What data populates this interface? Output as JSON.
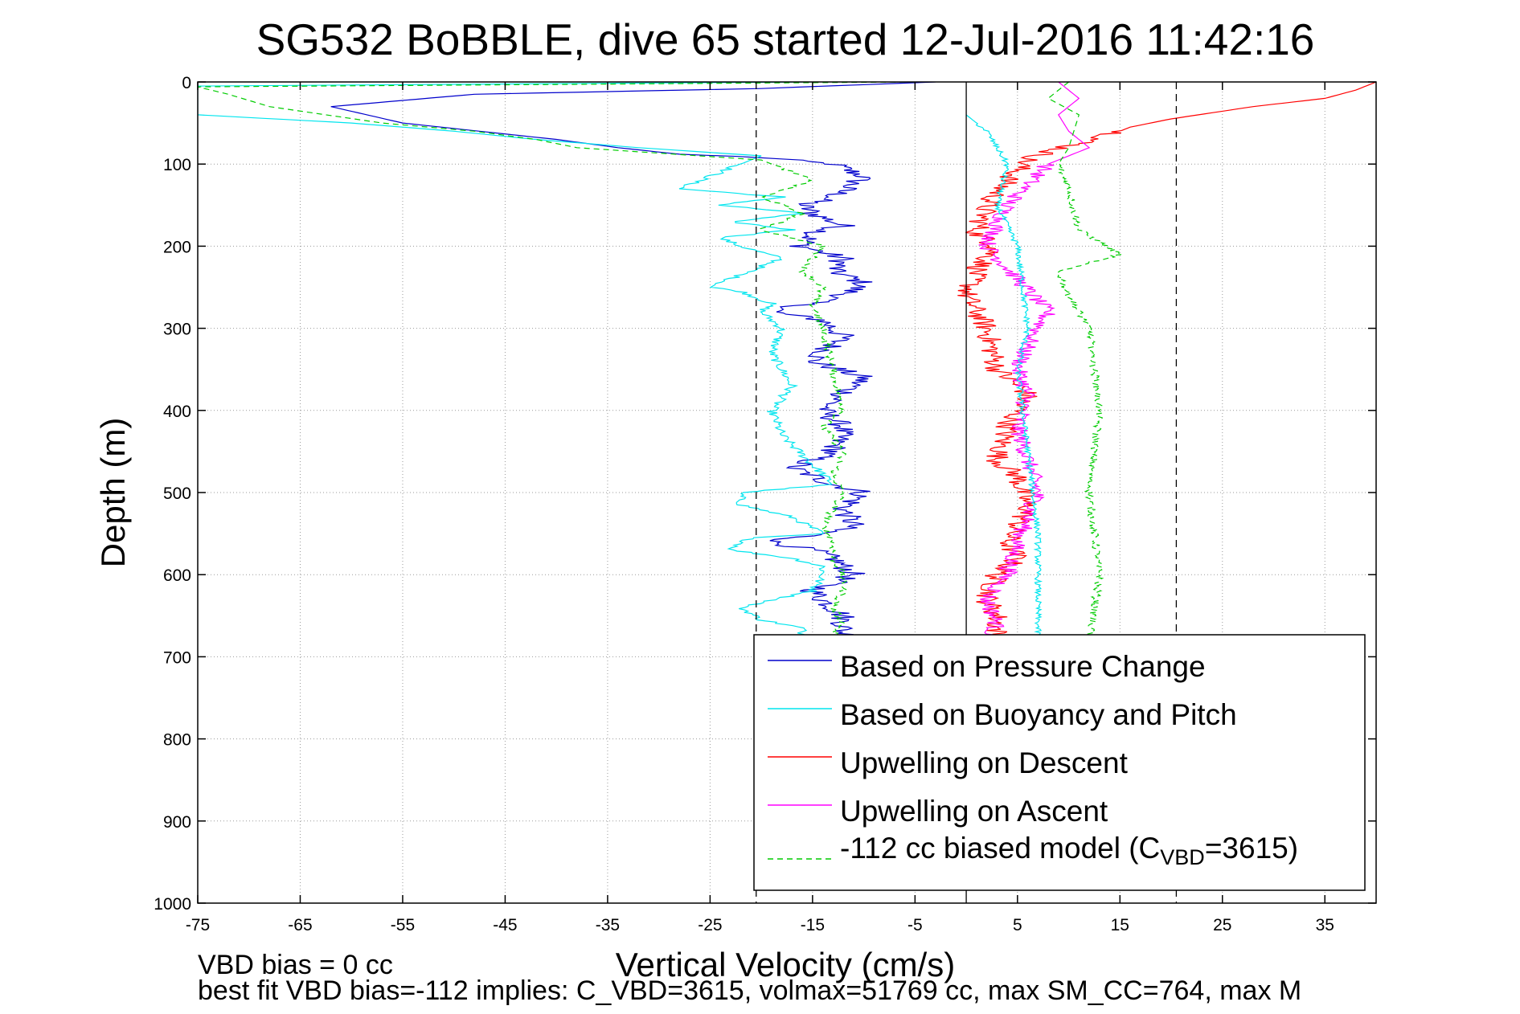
{
  "chart_data": {
    "type": "line",
    "title": "SG532 BoBBLE, dive 65 started 12-Jul-2016 11:42:16",
    "xlabel": "Vertical Velocity (cm/s)",
    "ylabel": "Depth (m)",
    "xlim": [
      -75,
      40
    ],
    "ylim": [
      0,
      1000
    ],
    "y_reversed": true,
    "grid": true,
    "xticks": [
      -75,
      -65,
      -55,
      -45,
      -35,
      -25,
      -15,
      -5,
      5,
      15,
      25,
      35
    ],
    "xtick_labels": [
      "-75",
      "-65",
      "-55",
      "-45",
      "-35",
      "-25",
      "-15",
      "-5",
      "5",
      "15",
      "25",
      "35"
    ],
    "yticks": [
      0,
      100,
      200,
      300,
      400,
      500,
      600,
      700,
      800,
      900,
      1000
    ],
    "ytick_labels": [
      "0",
      "100",
      "200",
      "300",
      "400",
      "500",
      "600",
      "700",
      "800",
      "900",
      "1000"
    ],
    "reference_lines": [
      {
        "x": 0,
        "style": "solid",
        "color": "#000000"
      },
      {
        "x": -20.5,
        "style": "dashed",
        "color": "#000000"
      },
      {
        "x": 20.5,
        "style": "dashed",
        "color": "#000000"
      }
    ],
    "legend": {
      "placement": "bottom-right",
      "entries": [
        {
          "series": "pressure",
          "label": "Based on Pressure Change"
        },
        {
          "series": "buoyancy",
          "label": "Based on Buoyancy and Pitch"
        },
        {
          "series": "upwell_desc",
          "label": "Upwelling on Descent"
        },
        {
          "series": "upwell_asc",
          "label": "Upwelling on Ascent"
        },
        {
          "series": "model",
          "label_main": "-112 cc biased model (C",
          "label_sub": "VBD",
          "label_end": "=3615)"
        }
      ]
    },
    "series": [
      {
        "id": "pressure",
        "name": "Based on Pressure Change",
        "color": "#0000cc",
        "dash": "",
        "noise": 1.3,
        "noise_start": 90,
        "x": [
          -3,
          -20,
          -48,
          -62,
          -55,
          -46,
          -40,
          -34,
          -28,
          -20,
          -13,
          -10,
          -13,
          -16,
          -15,
          -12,
          -15,
          -16,
          -12,
          -13,
          -10,
          -12,
          -19,
          -14,
          -12,
          -15,
          -10,
          -12,
          -14,
          -12,
          -13,
          -17,
          -13,
          -10,
          -12,
          -11,
          -14,
          -19,
          -15,
          -13,
          -11,
          -15,
          -12,
          -12,
          -11
        ],
        "y": [
          0,
          8,
          15,
          30,
          50,
          62,
          70,
          80,
          88,
          92,
          100,
          115,
          140,
          150,
          160,
          175,
          185,
          200,
          215,
          230,
          245,
          260,
          280,
          290,
          310,
          340,
          360,
          380,
          400,
          420,
          450,
          470,
          490,
          500,
          520,
          540,
          550,
          560,
          570,
          580,
          600,
          620,
          650,
          670,
          680
        ]
      },
      {
        "id": "buoyancy",
        "name": "Based on Buoyancy and Pitch",
        "color": "#00e5ee",
        "dash": "",
        "noise": 0.5,
        "noise_start": 100,
        "x": [
          -15,
          -75,
          -75,
          -75,
          -60,
          -50,
          -42,
          -32,
          -20,
          -28,
          -18,
          -24,
          -16,
          -23,
          -17,
          -24,
          -22,
          -18,
          -21,
          -25,
          -22,
          -19,
          -20,
          -18,
          -19,
          -17,
          -19,
          -18,
          -13,
          -22,
          -22,
          -17,
          -14,
          -21,
          -23,
          -17,
          -14,
          -14,
          -15,
          -22,
          -20,
          -16,
          -16
        ],
        "y": [
          0,
          5,
          10,
          40,
          50,
          60,
          70,
          80,
          90,
          130,
          140,
          150,
          160,
          170,
          180,
          190,
          200,
          215,
          230,
          250,
          255,
          270,
          280,
          300,
          330,
          370,
          400,
          430,
          490,
          500,
          515,
          530,
          550,
          555,
          570,
          580,
          590,
          600,
          620,
          640,
          655,
          665,
          680
        ]
      },
      {
        "id": "upwell_desc",
        "name": "Upwelling on Descent",
        "color": "#ff0000",
        "dash": "",
        "noise": 1.2,
        "noise_start": 60,
        "x": [
          40,
          38,
          35,
          28,
          20,
          16,
          14,
          11,
          8,
          6,
          4,
          2,
          1,
          3,
          1,
          0,
          2,
          3,
          6,
          4,
          3,
          5,
          6,
          5,
          4,
          5,
          3,
          2,
          3,
          3
        ],
        "y": [
          0,
          10,
          20,
          30,
          45,
          55,
          65,
          75,
          85,
          95,
          120,
          150,
          185,
          200,
          230,
          260,
          300,
          350,
          380,
          420,
          460,
          480,
          520,
          540,
          560,
          580,
          600,
          630,
          650,
          680
        ]
      },
      {
        "id": "upwell_asc",
        "name": "Upwelling on Ascent",
        "color": "#ff00ff",
        "dash": "",
        "noise": 0.9,
        "noise_start": 100,
        "x": [
          9,
          11,
          9,
          10,
          12,
          8,
          4,
          2,
          5,
          8,
          6,
          5,
          6,
          5,
          6,
          7,
          5,
          4,
          2,
          3,
          2
        ],
        "y": [
          0,
          20,
          40,
          60,
          80,
          100,
          150,
          200,
          240,
          280,
          320,
          350,
          380,
          420,
          460,
          500,
          560,
          600,
          630,
          660,
          680
        ]
      },
      {
        "id": "model",
        "name": "-112 cc biased model (C_VBD=3615)",
        "color": "#00cc00",
        "dash": "7,5",
        "noise": 0.4,
        "noise_start": 100,
        "x": [
          -5,
          -75,
          -72,
          -68,
          -57,
          -48,
          -42,
          -38,
          -20,
          -15,
          -20,
          -16,
          -20,
          -14,
          -16,
          -14,
          -15,
          -14,
          -13,
          -12,
          -14,
          -12,
          -13,
          -12,
          -13,
          -14,
          -13,
          -13,
          -12,
          -12,
          -13,
          -12,
          -13,
          -12,
          -13,
          -12
        ],
        "y": [
          0,
          6,
          15,
          30,
          50,
          60,
          70,
          80,
          95,
          120,
          140,
          160,
          180,
          200,
          230,
          250,
          270,
          300,
          350,
          400,
          420,
          450,
          480,
          500,
          520,
          540,
          560,
          580,
          600,
          620,
          640,
          660,
          670,
          680,
          690,
          700
        ]
      },
      {
        "id": "model_ascent",
        "name": "",
        "color": "#00cc00",
        "dash": "7,5",
        "noise": 0.4,
        "noise_start": 100,
        "x": [
          10,
          8,
          11,
          10,
          9,
          10,
          11,
          15,
          9,
          10,
          12,
          13,
          12,
          13,
          12
        ],
        "y": [
          0,
          20,
          40,
          80,
          100,
          130,
          180,
          210,
          230,
          260,
          300,
          400,
          500,
          600,
          680
        ]
      },
      {
        "id": "upwell_desc_bias_line",
        "name": "",
        "color": "#00e5ee",
        "dash": "",
        "noise": 0.3,
        "noise_start": 50,
        "x": [
          0,
          2,
          4,
          3,
          5,
          6,
          5,
          6,
          7,
          7,
          7
        ],
        "y": [
          40,
          60,
          100,
          150,
          200,
          300,
          350,
          450,
          550,
          650,
          680
        ]
      }
    ],
    "footer": {
      "line1": "VBD bias = 0 cc",
      "line2": "best fit VBD bias=-112 implies: C_VBD=3615, volmax=51769 cc, max SM_CC=764, max M"
    }
  }
}
